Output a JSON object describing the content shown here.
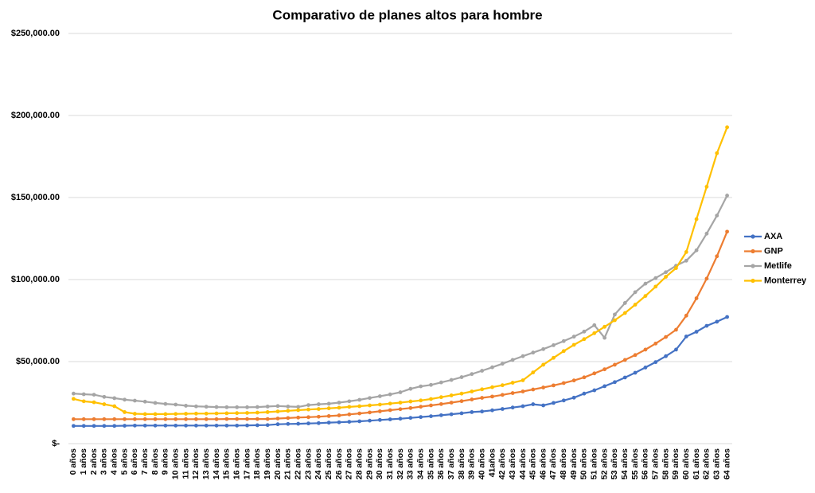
{
  "chart_data": {
    "type": "line",
    "title": "Comparativo de planes altos para hombre",
    "categories": [
      "0 años",
      "1 años",
      "2 años",
      "3 años",
      "4 años",
      "5 años",
      "6 años",
      "7 años",
      "8 años",
      "9 años",
      "10 años",
      "11 años",
      "12 años",
      "13 años",
      "14 años",
      "15 años",
      "16 años",
      "17 años",
      "18 años",
      "19 años",
      "20 años",
      "21 años",
      "22 años",
      "23 años",
      "24 años",
      "25 años",
      "26 años",
      "27 años",
      "28 años",
      "29 años",
      "30 años",
      "31 años",
      "32 años",
      "33 años",
      "34 años",
      "35 años",
      "36 años",
      "37 años",
      "38 años",
      "39 años",
      "40 años",
      "41años",
      "42 años",
      "43 años",
      "44 años",
      "45 años",
      "46 años",
      "47 años",
      "48 años",
      "49 años",
      "50 años",
      "51 años",
      "52 años",
      "53 años",
      "54 años",
      "55 años",
      "56 años",
      "57 años",
      "58 años",
      "59 años",
      "60 años",
      "61 años",
      "62 años",
      "63 años",
      "64 años"
    ],
    "series": [
      {
        "name": "AXA",
        "color": "#4472c4",
        "values": [
          10800,
          10800,
          10800,
          10800,
          10800,
          10900,
          11000,
          11000,
          11000,
          11000,
          11000,
          11000,
          11000,
          11000,
          11000,
          11000,
          11000,
          11100,
          11200,
          11300,
          11800,
          12000,
          12100,
          12300,
          12500,
          12800,
          13000,
          13300,
          13600,
          14000,
          14400,
          14800,
          15200,
          15700,
          16200,
          16700,
          17300,
          17900,
          18500,
          19200,
          19600,
          20300,
          21100,
          22000,
          22800,
          24000,
          23300,
          24800,
          26300,
          28000,
          30500,
          32500,
          35000,
          37500,
          40300,
          43200,
          46400,
          49700,
          53300,
          57300,
          65300,
          68200,
          71800,
          74300,
          77200
        ]
      },
      {
        "name": "GNP",
        "color": "#ed7d31",
        "values": [
          14900,
          14900,
          14900,
          14900,
          14900,
          14900,
          14900,
          14900,
          14900,
          14900,
          14900,
          14900,
          14900,
          14900,
          14900,
          15000,
          15000,
          15000,
          15000,
          15000,
          15300,
          15600,
          15900,
          16100,
          16400,
          16800,
          17200,
          17800,
          18400,
          19000,
          19700,
          20400,
          21000,
          21700,
          22500,
          23300,
          24100,
          25000,
          25900,
          26900,
          27900,
          28700,
          29700,
          30800,
          31800,
          33000,
          34200,
          35500,
          36900,
          38500,
          40400,
          42800,
          45300,
          48100,
          51000,
          54000,
          57300,
          61000,
          65000,
          69400,
          78000,
          88600,
          100600,
          114200,
          129200
        ]
      },
      {
        "name": "Metlife",
        "color": "#a5a5a5",
        "values": [
          30500,
          30100,
          29800,
          28500,
          27700,
          26800,
          26200,
          25600,
          24800,
          24200,
          23800,
          23100,
          22700,
          22500,
          22300,
          22200,
          22200,
          22200,
          22300,
          22600,
          22900,
          22600,
          22400,
          23500,
          24000,
          24300,
          25000,
          25800,
          26700,
          27800,
          28900,
          30000,
          31300,
          33400,
          34900,
          35800,
          37300,
          38800,
          40500,
          42400,
          44400,
          46500,
          48700,
          51000,
          53300,
          55500,
          57600,
          60000,
          62500,
          65200,
          68300,
          72200,
          64500,
          78700,
          85700,
          92300,
          97500,
          100900,
          104500,
          108400,
          111500,
          117800,
          128000,
          139000,
          151200
        ]
      },
      {
        "name": "Monterrey",
        "color": "#ffc000",
        "values": [
          27300,
          25800,
          25200,
          24000,
          22800,
          19200,
          18200,
          18000,
          18000,
          18000,
          18100,
          18200,
          18300,
          18300,
          18400,
          18500,
          18600,
          18700,
          18900,
          19200,
          19600,
          20000,
          20400,
          20800,
          21100,
          21500,
          21900,
          22400,
          22800,
          23300,
          23800,
          24400,
          25000,
          25700,
          26300,
          27200,
          28300,
          29400,
          30500,
          31800,
          33100,
          34400,
          35600,
          37100,
          38600,
          43400,
          48100,
          52300,
          56400,
          60200,
          63700,
          67300,
          71200,
          75200,
          79600,
          84700,
          90000,
          95700,
          101700,
          107000,
          116800,
          136800,
          156600,
          177000,
          192800
        ]
      }
    ],
    "ylim": [
      0,
      250000
    ],
    "yticks": [
      {
        "value": 0,
        "label": "$-"
      },
      {
        "value": 50000,
        "label": "$50,000.00"
      },
      {
        "value": 100000,
        "label": "$100,000.00"
      },
      {
        "value": 150000,
        "label": "$150,000.00"
      },
      {
        "value": 200000,
        "label": "$200,000.00"
      },
      {
        "value": 250000,
        "label": "$250,000.00"
      }
    ],
    "grid": true,
    "legend": "right"
  }
}
